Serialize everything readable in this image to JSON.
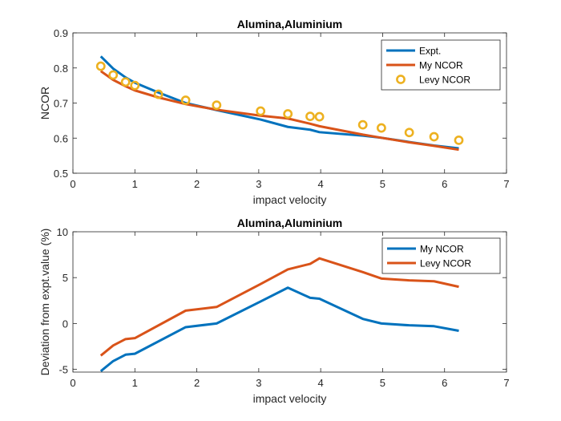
{
  "chart_data": [
    {
      "type": "line",
      "title": "Alumina,Aluminium",
      "xlabel": "impact velocity",
      "ylabel": "NCOR",
      "xlim": [
        0,
        7
      ],
      "ylim": [
        0.5,
        0.9
      ],
      "xticks": [
        "0",
        "1",
        "2",
        "3",
        "4",
        "5",
        "6",
        "7"
      ],
      "yticks": [
        "0.5",
        "0.6",
        "0.7",
        "0.8",
        "0.9"
      ],
      "legend_position": "top-right",
      "series": [
        {
          "name": "Expt.",
          "style": "line",
          "color": "#0072BD",
          "x": [
            0.45,
            0.65,
            0.85,
            1.0,
            1.38,
            1.82,
            2.32,
            3.03,
            3.47,
            3.83,
            3.98,
            4.68,
            4.98,
            5.43,
            5.83,
            6.23
          ],
          "y": [
            0.833,
            0.798,
            0.773,
            0.758,
            0.73,
            0.7,
            0.68,
            0.653,
            0.632,
            0.624,
            0.617,
            0.607,
            0.601,
            0.589,
            0.579,
            0.571
          ]
        },
        {
          "name": "My NCOR",
          "style": "line",
          "color": "#D95319",
          "x": [
            0.45,
            0.65,
            0.85,
            1.0,
            1.38,
            1.82,
            2.32,
            3.03,
            3.47,
            3.83,
            3.98,
            4.68,
            4.98,
            5.43,
            5.83,
            6.23
          ],
          "y": [
            0.791,
            0.766,
            0.748,
            0.736,
            0.716,
            0.697,
            0.681,
            0.664,
            0.656,
            0.641,
            0.634,
            0.61,
            0.601,
            0.588,
            0.578,
            0.567
          ]
        },
        {
          "name": "Levy NCOR",
          "style": "markers",
          "color": "#EDB120",
          "x": [
            0.45,
            0.65,
            0.85,
            1.0,
            1.38,
            1.82,
            2.32,
            3.03,
            3.47,
            3.83,
            3.98,
            4.68,
            4.98,
            5.43,
            5.83,
            6.23
          ],
          "y": [
            0.805,
            0.78,
            0.76,
            0.75,
            0.725,
            0.708,
            0.694,
            0.677,
            0.669,
            0.662,
            0.661,
            0.638,
            0.629,
            0.616,
            0.604,
            0.594
          ]
        }
      ]
    },
    {
      "type": "line",
      "title": "Alumina,Aluminium",
      "xlabel": "impact velocity",
      "ylabel": "Deviation from expt.value (%)",
      "xlim": [
        0,
        7
      ],
      "ylim": [
        -5.3,
        10
      ],
      "xticks": [
        "0",
        "1",
        "2",
        "3",
        "4",
        "5",
        "6",
        "7"
      ],
      "yticks": [
        "-5",
        "0",
        "5",
        "10"
      ],
      "legend_position": "top-right",
      "series": [
        {
          "name": "My NCOR",
          "style": "line",
          "color": "#0072BD",
          "x": [
            0.45,
            0.65,
            0.85,
            1.0,
            1.82,
            2.32,
            3.03,
            3.47,
            3.83,
            3.98,
            4.68,
            4.98,
            5.43,
            5.83,
            6.23
          ],
          "y": [
            -5.2,
            -4.1,
            -3.4,
            -3.3,
            -0.4,
            0.0,
            2.4,
            3.9,
            2.8,
            2.7,
            0.5,
            0.0,
            -0.2,
            -0.3,
            -0.8
          ]
        },
        {
          "name": "Levy NCOR",
          "style": "line",
          "color": "#D95319",
          "x": [
            0.45,
            0.65,
            0.85,
            1.0,
            1.82,
            2.32,
            3.03,
            3.47,
            3.83,
            3.98,
            4.68,
            4.98,
            5.43,
            5.83,
            6.23
          ],
          "y": [
            -3.5,
            -2.4,
            -1.7,
            -1.6,
            1.4,
            1.8,
            4.3,
            5.9,
            6.5,
            7.1,
            5.6,
            4.9,
            4.7,
            4.6,
            4.0
          ]
        }
      ]
    }
  ]
}
